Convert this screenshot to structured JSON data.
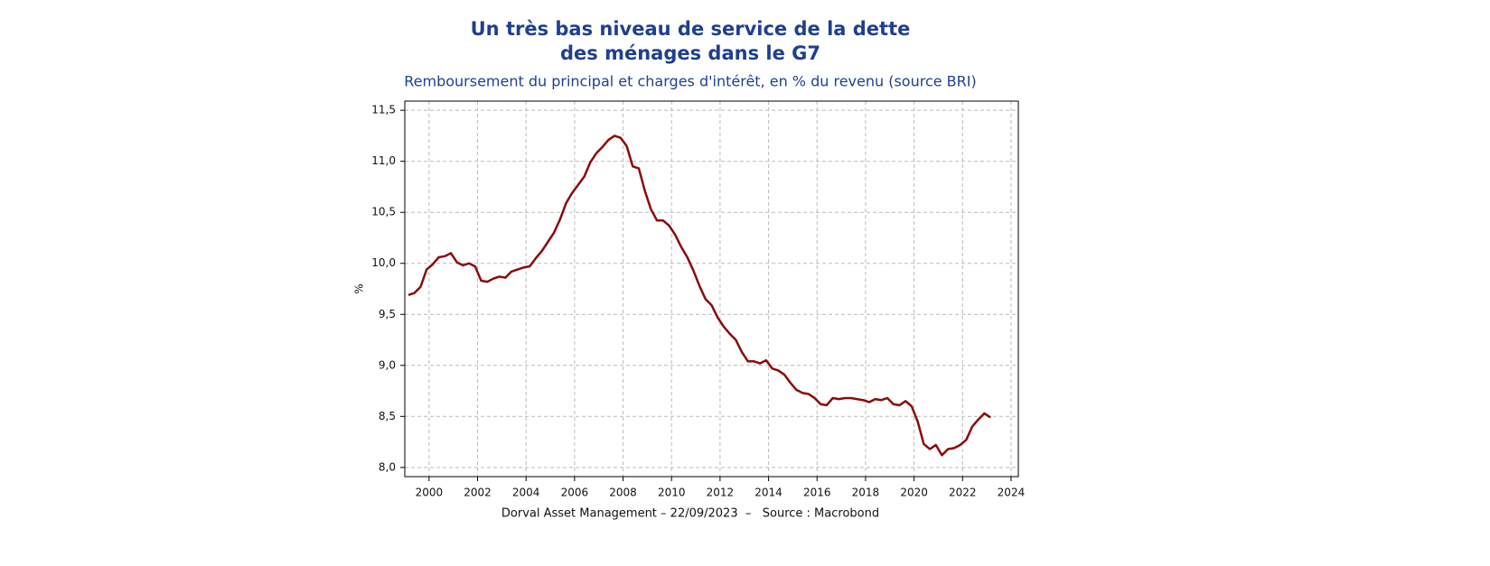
{
  "chart_data": {
    "type": "line",
    "title": [
      "Un très bas niveau de service de la dette",
      "des ménages dans le G7"
    ],
    "subtitle": "Remboursement du principal et charges d'intérêt, en % du revenu (source BRI)",
    "y_label": "%",
    "source": "Dorval Asset Management – 22/09/2023  –   Source : Macrobond",
    "x": [
      1999.15,
      1999.4,
      1999.65,
      1999.9,
      2000.15,
      2000.4,
      2000.65,
      2000.9,
      2001.15,
      2001.4,
      2001.65,
      2001.9,
      2002.15,
      2002.4,
      2002.65,
      2002.9,
      2003.15,
      2003.4,
      2003.65,
      2003.9,
      2004.15,
      2004.4,
      2004.65,
      2004.9,
      2005.15,
      2005.4,
      2005.65,
      2005.9,
      2006.15,
      2006.4,
      2006.65,
      2006.9,
      2007.15,
      2007.4,
      2007.65,
      2007.9,
      2008.15,
      2008.4,
      2008.65,
      2008.9,
      2009.15,
      2009.4,
      2009.65,
      2009.9,
      2010.15,
      2010.4,
      2010.65,
      2010.9,
      2011.15,
      2011.4,
      2011.65,
      2011.9,
      2012.15,
      2012.4,
      2012.65,
      2012.9,
      2013.15,
      2013.4,
      2013.65,
      2013.9,
      2014.15,
      2014.4,
      2014.65,
      2014.9,
      2015.15,
      2015.4,
      2015.65,
      2015.9,
      2016.15,
      2016.4,
      2016.65,
      2016.9,
      2017.15,
      2017.4,
      2017.65,
      2017.9,
      2018.15,
      2018.4,
      2018.65,
      2018.9,
      2019.15,
      2019.4,
      2019.65,
      2019.9,
      2020.15,
      2020.4,
      2020.65,
      2020.9,
      2021.15,
      2021.4,
      2021.65,
      2021.9,
      2022.15,
      2022.4,
      2022.65,
      2022.9,
      2023.15
    ],
    "series": [
      {
        "name": "G7",
        "color": "#8b0a0a",
        "values": [
          9.69,
          9.71,
          9.77,
          9.94,
          9.99,
          10.06,
          10.07,
          10.1,
          10.01,
          9.98,
          10.0,
          9.97,
          9.83,
          9.82,
          9.85,
          9.87,
          9.86,
          9.92,
          9.94,
          9.96,
          9.97,
          10.05,
          10.12,
          10.21,
          10.3,
          10.43,
          10.59,
          10.69,
          10.77,
          10.85,
          10.99,
          11.08,
          11.14,
          11.21,
          11.25,
          11.23,
          11.15,
          10.95,
          10.93,
          10.71,
          10.53,
          10.42,
          10.42,
          10.37,
          10.28,
          10.16,
          10.06,
          9.93,
          9.78,
          9.65,
          9.59,
          9.47,
          9.38,
          9.31,
          9.25,
          9.13,
          9.04,
          9.04,
          9.02,
          9.05,
          8.97,
          8.95,
          8.91,
          8.83,
          8.76,
          8.73,
          8.72,
          8.68,
          8.62,
          8.61,
          8.68,
          8.67,
          8.68,
          8.68,
          8.67,
          8.66,
          8.64,
          8.67,
          8.66,
          8.68,
          8.62,
          8.61,
          8.65,
          8.6,
          8.45,
          8.23,
          8.18,
          8.22,
          8.12,
          8.18,
          8.19,
          8.22,
          8.27,
          8.4,
          8.47,
          8.53,
          8.49
        ]
      }
    ],
    "xlim": [
      1999.0,
      2024.3
    ],
    "xticks": [
      2000,
      2002,
      2004,
      2006,
      2008,
      2010,
      2012,
      2014,
      2016,
      2018,
      2020,
      2022,
      2024
    ],
    "ylim": [
      7.91,
      11.59
    ],
    "yticks": [
      {
        "value": 8.0,
        "label": "8,0"
      },
      {
        "value": 8.5,
        "label": "8,5"
      },
      {
        "value": 9.0,
        "label": "9,0"
      },
      {
        "value": 9.5,
        "label": "9,5"
      },
      {
        "value": 10.0,
        "label": "10,0"
      },
      {
        "value": 10.5,
        "label": "10,5"
      },
      {
        "value": 11.0,
        "label": "11,0"
      },
      {
        "value": 11.5,
        "label": "11,5"
      }
    ],
    "grid": true
  }
}
